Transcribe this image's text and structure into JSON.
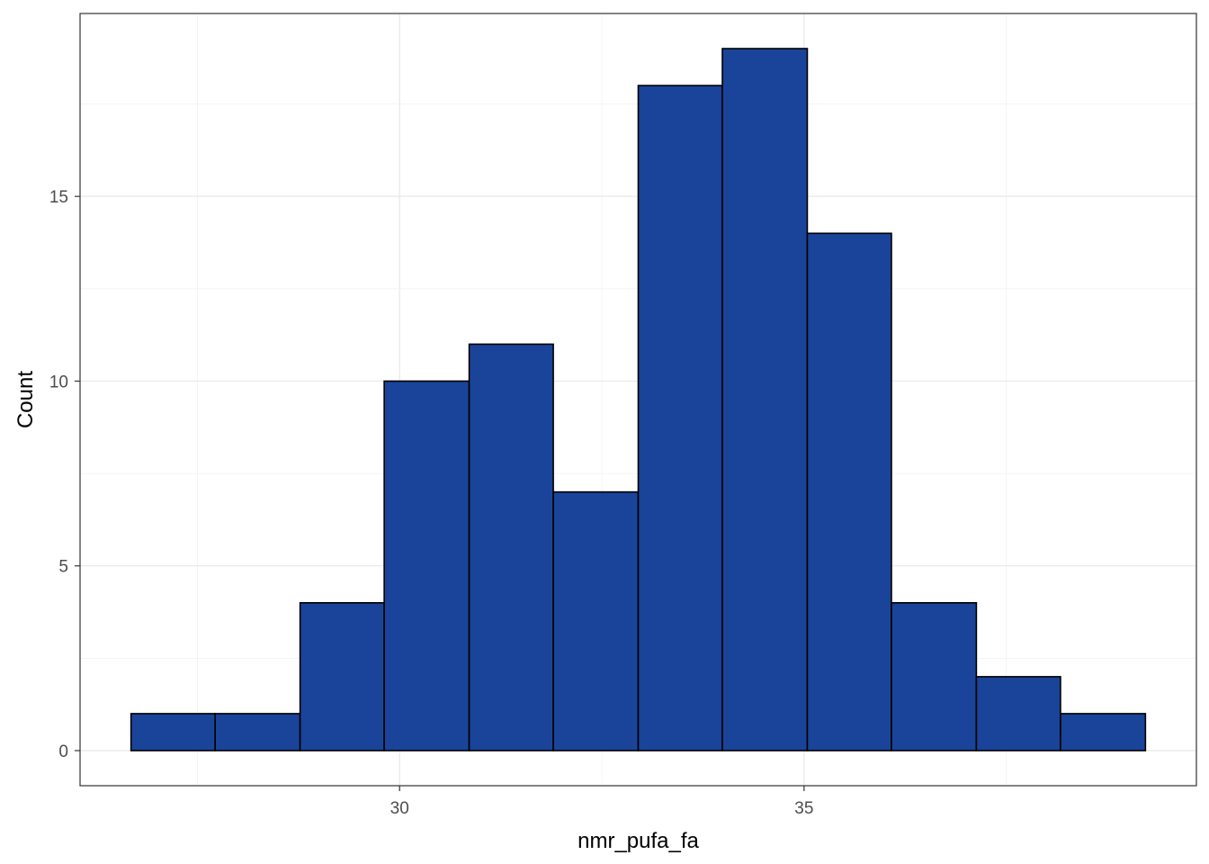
{
  "chart_data": {
    "type": "bar",
    "subtype": "histogram",
    "title": "",
    "xlabel": "nmr_pufa_fa",
    "ylabel": "Count",
    "bin_width": 1.045,
    "bins": [
      {
        "x_start": 26.68,
        "x_end": 27.72,
        "count": 1
      },
      {
        "x_start": 27.72,
        "x_end": 28.77,
        "count": 1
      },
      {
        "x_start": 28.77,
        "x_end": 29.81,
        "count": 4
      },
      {
        "x_start": 29.81,
        "x_end": 30.86,
        "count": 10
      },
      {
        "x_start": 30.86,
        "x_end": 31.9,
        "count": 11
      },
      {
        "x_start": 31.9,
        "x_end": 32.95,
        "count": 7
      },
      {
        "x_start": 32.95,
        "x_end": 33.99,
        "count": 18
      },
      {
        "x_start": 33.99,
        "x_end": 35.04,
        "count": 19
      },
      {
        "x_start": 35.04,
        "x_end": 36.08,
        "count": 14
      },
      {
        "x_start": 36.08,
        "x_end": 37.13,
        "count": 4
      },
      {
        "x_start": 37.13,
        "x_end": 38.17,
        "count": 2
      },
      {
        "x_start": 38.17,
        "x_end": 39.22,
        "count": 1
      }
    ],
    "x_ticks": [
      30,
      35
    ],
    "x_tick_labels": [
      "30",
      "35"
    ],
    "y_ticks": [
      0,
      5,
      10,
      15
    ],
    "y_tick_labels": [
      "0",
      "5",
      "10",
      "15"
    ],
    "xlim": [
      26.05,
      39.85
    ],
    "ylim": [
      -0.95,
      19.95
    ],
    "grid": true,
    "legend": "none",
    "colors": {
      "bar_fill": "#1a4499",
      "bar_outline": "#000000",
      "panel_border": "#333333",
      "grid": "#ebebeb",
      "tick_label": "#4d4d4d"
    }
  }
}
